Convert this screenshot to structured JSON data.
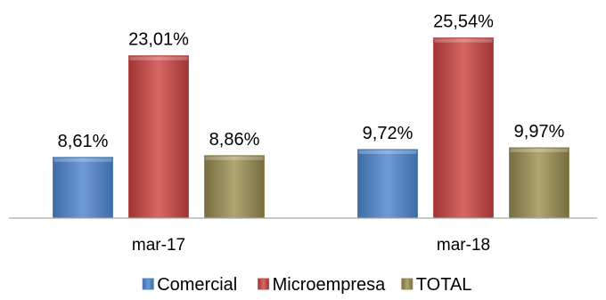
{
  "chart_data": {
    "type": "bar",
    "categories": [
      "mar-17",
      "mar-18"
    ],
    "series": [
      {
        "name": "Comercial",
        "values": [
          8.61,
          9.72
        ],
        "labels": [
          "8,61%",
          "9,72%"
        ],
        "color": "#4F81BD"
      },
      {
        "name": "Microempresa",
        "values": [
          23.01,
          25.54
        ],
        "labels": [
          "23,01%",
          "25,54%"
        ],
        "color": "#C0504D"
      },
      {
        "name": "TOTAL",
        "values": [
          8.86,
          9.97
        ],
        "labels": [
          "8,86%",
          "9,97%"
        ],
        "color": "#948A54"
      }
    ],
    "ylim": [
      0,
      30
    ],
    "grid": false,
    "legend_position": "bottom",
    "title": "",
    "xlabel": "",
    "ylabel": ""
  }
}
